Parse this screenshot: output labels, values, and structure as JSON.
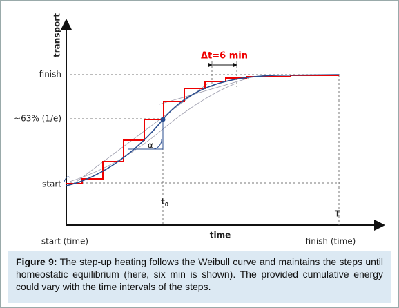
{
  "figure": {
    "y_axis_label": "transport",
    "levels": {
      "finish": "finish",
      "mid": "~63% (1/e)",
      "start": "start"
    },
    "delta_t": "Δt=6 min",
    "angle": "α",
    "t0": {
      "base": "t",
      "sub": "0"
    },
    "T": "T",
    "x_axis_label": "time",
    "x_start": "start (time)",
    "x_finish": "finish (time)"
  },
  "caption": {
    "label": "Figure 9:",
    "text": "The step-up heating follows the Weibull curve and maintains the steps until homeostatic equilibrium (here, six min is shown). The provided cumulative energy could vary with the time intervals of the steps."
  }
}
